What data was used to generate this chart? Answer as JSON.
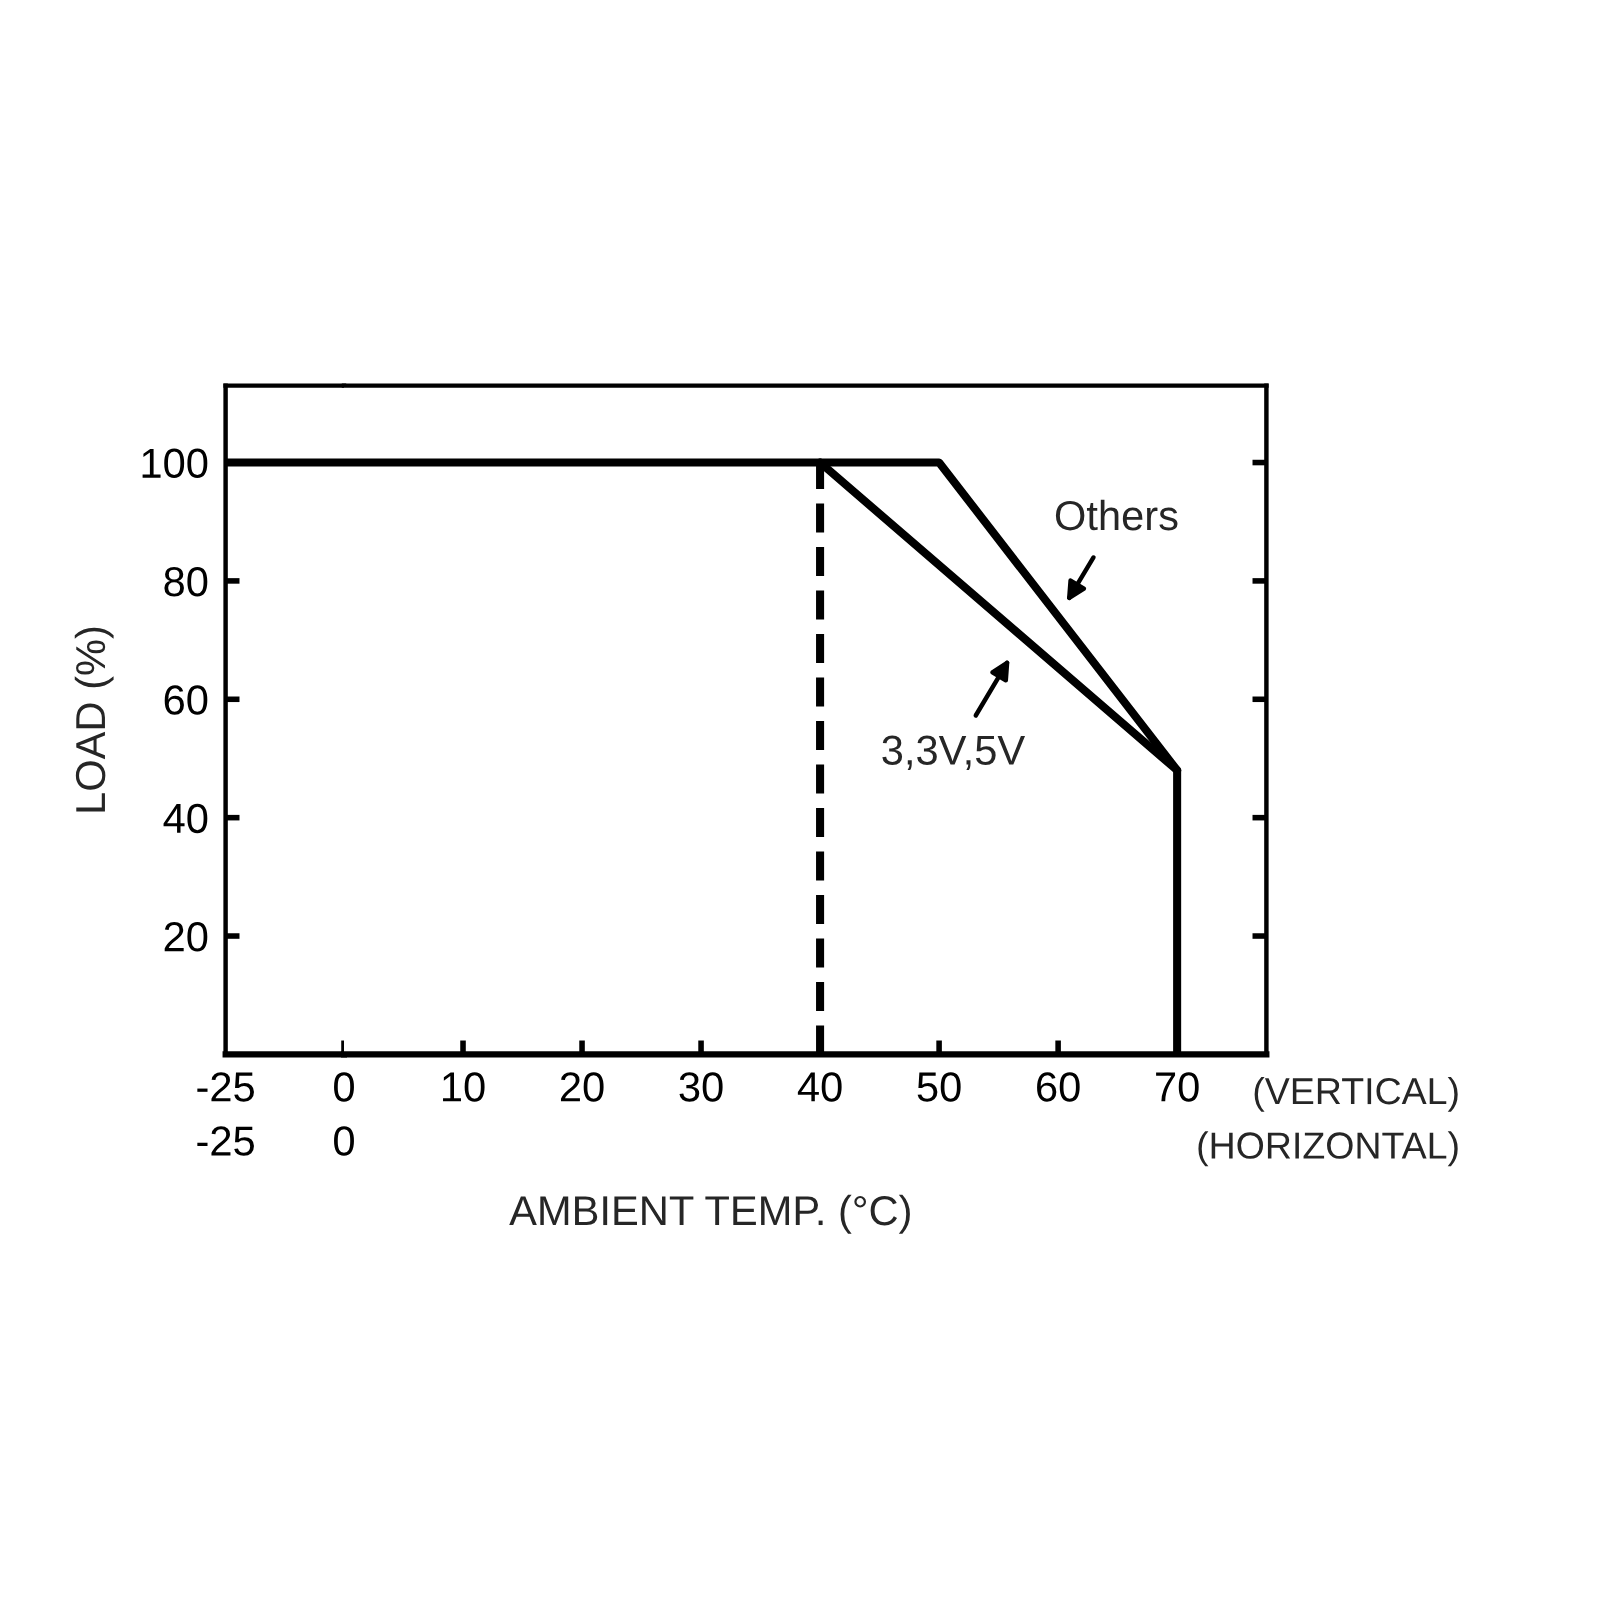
{
  "chart_data": [
    {
      "type": "line",
      "ylabel": "LOAD (%)",
      "series": [
        {
          "color": "#000000",
          "x": [
            -25,
            0
          ],
          "values": [
            100,
            100
          ]
        }
      ],
      "xlim": [
        -25,
        0
      ],
      "xticks": [
        -25,
        0
      ],
      "x2lim": [
        -25,
        0
      ],
      "x2ticks": [
        -25,
        0
      ],
      "ylim": [
        0,
        113
      ],
      "yticks": [
        20,
        40,
        60,
        80,
        100
      ]
    },
    {
      "type": "line",
      "xlabel": "AMBIENT TEMP. (°C)",
      "series": [
        {
          "color": "#000000",
          "x": [
            0,
            50,
            70,
            70
          ],
          "values": [
            100,
            100,
            48,
            0
          ]
        },
        {
          "color": "#000000",
          "x": [
            40,
            70
          ],
          "values": [
            100,
            48
          ]
        }
      ],
      "ref_lines": [
        {
          "axis": "x",
          "value": 40,
          "color": "#000000",
          "line_style": "dashed"
        }
      ],
      "xlim": [
        0,
        77.5
      ],
      "xticks": [
        10,
        20,
        30,
        40,
        50,
        60,
        70
      ],
      "ylim": [
        0,
        113
      ],
      "yticks": [
        20,
        40,
        60,
        80,
        100
      ],
      "tick_labels": "x",
      "annotations": [
        {
          "text": "Others",
          "x": 60,
          "y": 74
        },
        {
          "text": "3,3V,5V",
          "x": 57,
          "y": 70.5
        },
        "(VERTICAL)",
        "(HORIZONTAL)"
      ]
    }
  ]
}
